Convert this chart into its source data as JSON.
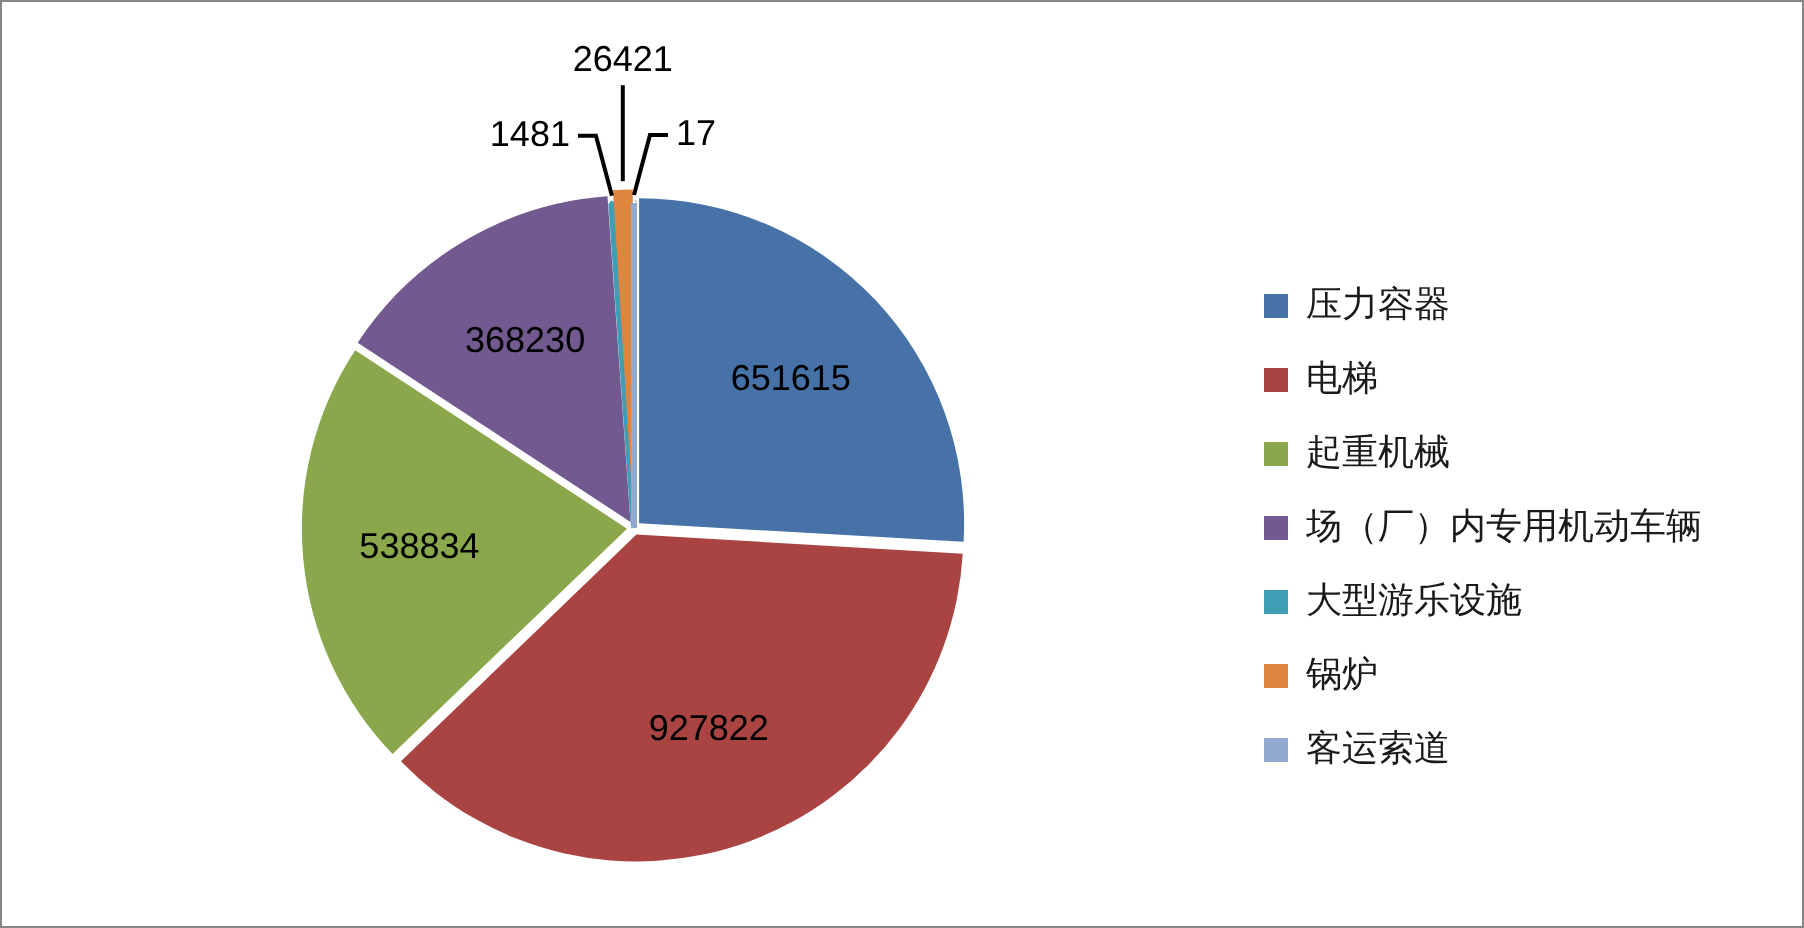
{
  "chart_data": {
    "type": "pie",
    "categories": [
      "压力容器",
      "电梯",
      "起重机械",
      "场（厂）内专用机动车辆",
      "大型游乐设施",
      "锅炉",
      "客运索道"
    ],
    "values": [
      651615,
      927822,
      538834,
      368230,
      1481,
      26421,
      17
    ],
    "colors": [
      "#4672a8",
      "#aa4442",
      "#8aa84b",
      "#72598f",
      "#3f9db4",
      "#e0853e",
      "#93a9d0"
    ],
    "legend": "right",
    "data_labels": true
  }
}
